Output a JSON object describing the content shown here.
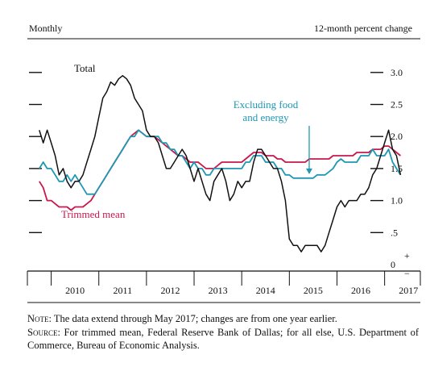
{
  "header": {
    "left": "Monthly",
    "right": "12-month percent change"
  },
  "notes": {
    "note_label": "Note:",
    "note_text": "The data extend through May 2017; changes are from one year earlier.",
    "source_label": "Source:",
    "source_text": "For trimmed mean, Federal Reserve Bank of Dallas; for all else, U.S. Department of Commerce, Bureau of Economic Analysis."
  },
  "colors": {
    "total": "#111111",
    "core": "#1f97b3",
    "trimmed": "#c8194c"
  },
  "chart_data": {
    "type": "line",
    "title": "",
    "xlabel": "",
    "ylabel": "12-month percent change",
    "frequency": "Monthly",
    "xlim": [
      "2009-07",
      "2017-10"
    ],
    "ylim": [
      -0.25,
      3.2
    ],
    "yticks": [
      {
        "value": 3.0,
        "label": "3.0"
      },
      {
        "value": 2.5,
        "label": "2.5"
      },
      {
        "value": 2.0,
        "label": "2.0"
      },
      {
        "value": 1.5,
        "label": "1.5"
      },
      {
        "value": 1.0,
        "label": "1.0"
      },
      {
        "value": 0.5,
        "label": ".5"
      },
      {
        "value": 0.0,
        "label": "0"
      }
    ],
    "zero_marks": [
      "+",
      "−"
    ],
    "year_labels": [
      "2010",
      "2011",
      "2012",
      "2013",
      "2014",
      "2015",
      "2016",
      "2017"
    ],
    "grid": false,
    "series": [
      {
        "key": "total",
        "name": "Total",
        "points": [
          [
            "2009-10",
            2.1
          ],
          [
            "2009-11",
            1.9
          ],
          [
            "2009-12",
            2.1
          ],
          [
            "2010-01",
            1.9
          ],
          [
            "2010-02",
            1.7
          ],
          [
            "2010-03",
            1.4
          ],
          [
            "2010-04",
            1.5
          ],
          [
            "2010-05",
            1.3
          ],
          [
            "2010-06",
            1.2
          ],
          [
            "2010-07",
            1.3
          ],
          [
            "2010-08",
            1.3
          ],
          [
            "2010-09",
            1.4
          ],
          [
            "2010-10",
            1.6
          ],
          [
            "2010-11",
            1.8
          ],
          [
            "2010-12",
            2.0
          ],
          [
            "2011-01",
            2.3
          ],
          [
            "2011-02",
            2.6
          ],
          [
            "2011-03",
            2.7
          ],
          [
            "2011-04",
            2.85
          ],
          [
            "2011-05",
            2.8
          ],
          [
            "2011-06",
            2.9
          ],
          [
            "2011-07",
            2.95
          ],
          [
            "2011-08",
            2.9
          ],
          [
            "2011-09",
            2.8
          ],
          [
            "2011-10",
            2.6
          ],
          [
            "2011-11",
            2.5
          ],
          [
            "2011-12",
            2.4
          ],
          [
            "2012-01",
            2.1
          ],
          [
            "2012-02",
            2.0
          ],
          [
            "2012-03",
            2.0
          ],
          [
            "2012-04",
            1.9
          ],
          [
            "2012-05",
            1.7
          ],
          [
            "2012-06",
            1.5
          ],
          [
            "2012-07",
            1.5
          ],
          [
            "2012-08",
            1.6
          ],
          [
            "2012-09",
            1.7
          ],
          [
            "2012-10",
            1.8
          ],
          [
            "2012-11",
            1.7
          ],
          [
            "2012-12",
            1.5
          ],
          [
            "2013-01",
            1.3
          ],
          [
            "2013-02",
            1.5
          ],
          [
            "2013-03",
            1.3
          ],
          [
            "2013-04",
            1.1
          ],
          [
            "2013-05",
            1.0
          ],
          [
            "2013-06",
            1.3
          ],
          [
            "2013-07",
            1.4
          ],
          [
            "2013-08",
            1.5
          ],
          [
            "2013-09",
            1.3
          ],
          [
            "2013-10",
            1.0
          ],
          [
            "2013-11",
            1.1
          ],
          [
            "2013-12",
            1.3
          ],
          [
            "2014-01",
            1.2
          ],
          [
            "2014-02",
            1.3
          ],
          [
            "2014-03",
            1.3
          ],
          [
            "2014-04",
            1.6
          ],
          [
            "2014-05",
            1.8
          ],
          [
            "2014-06",
            1.8
          ],
          [
            "2014-07",
            1.7
          ],
          [
            "2014-08",
            1.6
          ],
          [
            "2014-09",
            1.5
          ],
          [
            "2014-10",
            1.5
          ],
          [
            "2014-11",
            1.3
          ],
          [
            "2014-12",
            1.0
          ],
          [
            "2015-01",
            0.4
          ],
          [
            "2015-02",
            0.3
          ],
          [
            "2015-03",
            0.3
          ],
          [
            "2015-04",
            0.2
          ],
          [
            "2015-05",
            0.3
          ],
          [
            "2015-06",
            0.3
          ],
          [
            "2015-07",
            0.3
          ],
          [
            "2015-08",
            0.3
          ],
          [
            "2015-09",
            0.2
          ],
          [
            "2015-10",
            0.3
          ],
          [
            "2015-11",
            0.5
          ],
          [
            "2015-12",
            0.7
          ],
          [
            "2016-01",
            0.9
          ],
          [
            "2016-02",
            1.0
          ],
          [
            "2016-03",
            0.9
          ],
          [
            "2016-04",
            1.0
          ],
          [
            "2016-05",
            1.0
          ],
          [
            "2016-06",
            1.0
          ],
          [
            "2016-07",
            1.1
          ],
          [
            "2016-08",
            1.1
          ],
          [
            "2016-09",
            1.2
          ],
          [
            "2016-10",
            1.4
          ],
          [
            "2016-11",
            1.5
          ],
          [
            "2016-12",
            1.7
          ],
          [
            "2017-01",
            1.9
          ],
          [
            "2017-02",
            2.1
          ],
          [
            "2017-03",
            1.8
          ],
          [
            "2017-04",
            1.7
          ],
          [
            "2017-05",
            1.4
          ]
        ]
      },
      {
        "key": "core",
        "name": "Excluding food and energy",
        "points": [
          [
            "2009-10",
            1.5
          ],
          [
            "2009-11",
            1.6
          ],
          [
            "2009-12",
            1.5
          ],
          [
            "2010-01",
            1.5
          ],
          [
            "2010-02",
            1.4
          ],
          [
            "2010-03",
            1.3
          ],
          [
            "2010-04",
            1.3
          ],
          [
            "2010-05",
            1.4
          ],
          [
            "2010-06",
            1.3
          ],
          [
            "2010-07",
            1.4
          ],
          [
            "2010-08",
            1.3
          ],
          [
            "2010-09",
            1.2
          ],
          [
            "2010-10",
            1.1
          ],
          [
            "2010-11",
            1.1
          ],
          [
            "2010-12",
            1.1
          ],
          [
            "2011-01",
            1.2
          ],
          [
            "2011-02",
            1.3
          ],
          [
            "2011-03",
            1.4
          ],
          [
            "2011-04",
            1.5
          ],
          [
            "2011-05",
            1.6
          ],
          [
            "2011-06",
            1.7
          ],
          [
            "2011-07",
            1.8
          ],
          [
            "2011-08",
            1.9
          ],
          [
            "2011-09",
            2.0
          ],
          [
            "2011-10",
            2.0
          ],
          [
            "2011-11",
            2.1
          ],
          [
            "2011-12",
            2.05
          ],
          [
            "2012-01",
            2.0
          ],
          [
            "2012-02",
            2.0
          ],
          [
            "2012-03",
            2.0
          ],
          [
            "2012-04",
            2.0
          ],
          [
            "2012-05",
            1.9
          ],
          [
            "2012-06",
            1.9
          ],
          [
            "2012-07",
            1.8
          ],
          [
            "2012-08",
            1.8
          ],
          [
            "2012-09",
            1.7
          ],
          [
            "2012-10",
            1.7
          ],
          [
            "2012-11",
            1.6
          ],
          [
            "2012-12",
            1.5
          ],
          [
            "2013-01",
            1.6
          ],
          [
            "2013-02",
            1.5
          ],
          [
            "2013-03",
            1.5
          ],
          [
            "2013-04",
            1.4
          ],
          [
            "2013-05",
            1.4
          ],
          [
            "2013-06",
            1.5
          ],
          [
            "2013-07",
            1.5
          ],
          [
            "2013-08",
            1.5
          ],
          [
            "2013-09",
            1.5
          ],
          [
            "2013-10",
            1.5
          ],
          [
            "2013-11",
            1.5
          ],
          [
            "2013-12",
            1.5
          ],
          [
            "2014-01",
            1.5
          ],
          [
            "2014-02",
            1.6
          ],
          [
            "2014-03",
            1.6
          ],
          [
            "2014-04",
            1.7
          ],
          [
            "2014-05",
            1.7
          ],
          [
            "2014-06",
            1.7
          ],
          [
            "2014-07",
            1.6
          ],
          [
            "2014-08",
            1.6
          ],
          [
            "2014-09",
            1.6
          ],
          [
            "2014-10",
            1.5
          ],
          [
            "2014-11",
            1.5
          ],
          [
            "2014-12",
            1.4
          ],
          [
            "2015-01",
            1.4
          ],
          [
            "2015-02",
            1.35
          ],
          [
            "2015-03",
            1.35
          ],
          [
            "2015-04",
            1.35
          ],
          [
            "2015-05",
            1.35
          ],
          [
            "2015-06",
            1.35
          ],
          [
            "2015-07",
            1.35
          ],
          [
            "2015-08",
            1.4
          ],
          [
            "2015-09",
            1.4
          ],
          [
            "2015-10",
            1.4
          ],
          [
            "2015-11",
            1.45
          ],
          [
            "2015-12",
            1.5
          ],
          [
            "2016-01",
            1.6
          ],
          [
            "2016-02",
            1.65
          ],
          [
            "2016-03",
            1.6
          ],
          [
            "2016-04",
            1.6
          ],
          [
            "2016-05",
            1.6
          ],
          [
            "2016-06",
            1.6
          ],
          [
            "2016-07",
            1.7
          ],
          [
            "2016-08",
            1.7
          ],
          [
            "2016-09",
            1.7
          ],
          [
            "2016-10",
            1.8
          ],
          [
            "2016-11",
            1.7
          ],
          [
            "2016-12",
            1.7
          ],
          [
            "2017-01",
            1.7
          ],
          [
            "2017-02",
            1.8
          ],
          [
            "2017-03",
            1.6
          ],
          [
            "2017-04",
            1.5
          ],
          [
            "2017-05",
            1.4
          ]
        ]
      },
      {
        "key": "trimmed",
        "name": "Trimmed mean",
        "points": [
          [
            "2009-10",
            1.3
          ],
          [
            "2009-11",
            1.2
          ],
          [
            "2009-12",
            1.0
          ],
          [
            "2010-01",
            1.0
          ],
          [
            "2010-02",
            0.95
          ],
          [
            "2010-03",
            0.9
          ],
          [
            "2010-04",
            0.9
          ],
          [
            "2010-05",
            0.9
          ],
          [
            "2010-06",
            0.85
          ],
          [
            "2010-07",
            0.9
          ],
          [
            "2010-08",
            0.9
          ],
          [
            "2010-09",
            0.9
          ],
          [
            "2010-10",
            0.95
          ],
          [
            "2010-11",
            1.0
          ],
          [
            "2010-12",
            1.1
          ],
          [
            "2011-01",
            1.2
          ],
          [
            "2011-02",
            1.3
          ],
          [
            "2011-03",
            1.4
          ],
          [
            "2011-04",
            1.5
          ],
          [
            "2011-05",
            1.6
          ],
          [
            "2011-06",
            1.7
          ],
          [
            "2011-07",
            1.8
          ],
          [
            "2011-08",
            1.9
          ],
          [
            "2011-09",
            2.0
          ],
          [
            "2011-10",
            2.05
          ],
          [
            "2011-11",
            2.1
          ],
          [
            "2011-12",
            2.05
          ],
          [
            "2012-01",
            2.0
          ],
          [
            "2012-02",
            2.0
          ],
          [
            "2012-03",
            2.0
          ],
          [
            "2012-04",
            1.95
          ],
          [
            "2012-05",
            1.9
          ],
          [
            "2012-06",
            1.85
          ],
          [
            "2012-07",
            1.8
          ],
          [
            "2012-08",
            1.75
          ],
          [
            "2012-09",
            1.7
          ],
          [
            "2012-10",
            1.7
          ],
          [
            "2012-11",
            1.65
          ],
          [
            "2012-12",
            1.6
          ],
          [
            "2013-01",
            1.6
          ],
          [
            "2013-02",
            1.6
          ],
          [
            "2013-03",
            1.55
          ],
          [
            "2013-04",
            1.5
          ],
          [
            "2013-05",
            1.5
          ],
          [
            "2013-06",
            1.5
          ],
          [
            "2013-07",
            1.55
          ],
          [
            "2013-08",
            1.6
          ],
          [
            "2013-09",
            1.6
          ],
          [
            "2013-10",
            1.6
          ],
          [
            "2013-11",
            1.6
          ],
          [
            "2013-12",
            1.6
          ],
          [
            "2014-01",
            1.6
          ],
          [
            "2014-02",
            1.65
          ],
          [
            "2014-03",
            1.7
          ],
          [
            "2014-04",
            1.75
          ],
          [
            "2014-05",
            1.75
          ],
          [
            "2014-06",
            1.75
          ],
          [
            "2014-07",
            1.7
          ],
          [
            "2014-08",
            1.7
          ],
          [
            "2014-09",
            1.7
          ],
          [
            "2014-10",
            1.65
          ],
          [
            "2014-11",
            1.65
          ],
          [
            "2014-12",
            1.6
          ],
          [
            "2015-01",
            1.6
          ],
          [
            "2015-02",
            1.6
          ],
          [
            "2015-03",
            1.6
          ],
          [
            "2015-04",
            1.6
          ],
          [
            "2015-05",
            1.6
          ],
          [
            "2015-06",
            1.65
          ],
          [
            "2015-07",
            1.65
          ],
          [
            "2015-08",
            1.65
          ],
          [
            "2015-09",
            1.65
          ],
          [
            "2015-10",
            1.65
          ],
          [
            "2015-11",
            1.65
          ],
          [
            "2015-12",
            1.7
          ],
          [
            "2016-01",
            1.7
          ],
          [
            "2016-02",
            1.7
          ],
          [
            "2016-03",
            1.7
          ],
          [
            "2016-04",
            1.7
          ],
          [
            "2016-05",
            1.7
          ],
          [
            "2016-06",
            1.75
          ],
          [
            "2016-07",
            1.75
          ],
          [
            "2016-08",
            1.75
          ],
          [
            "2016-09",
            1.75
          ],
          [
            "2016-10",
            1.8
          ],
          [
            "2016-11",
            1.8
          ],
          [
            "2016-12",
            1.8
          ],
          [
            "2017-01",
            1.85
          ],
          [
            "2017-02",
            1.85
          ],
          [
            "2017-03",
            1.8
          ],
          [
            "2017-04",
            1.75
          ],
          [
            "2017-05",
            1.7
          ]
        ]
      }
    ],
    "annotations": [
      {
        "series": "total",
        "text": "Total"
      },
      {
        "series": "core",
        "text": "Excluding food and energy",
        "lines": [
          "Excluding food",
          "and energy"
        ],
        "arrow_to": [
          "2015-06",
          1.4
        ]
      },
      {
        "series": "trimmed",
        "text": "Trimmed mean"
      }
    ]
  }
}
